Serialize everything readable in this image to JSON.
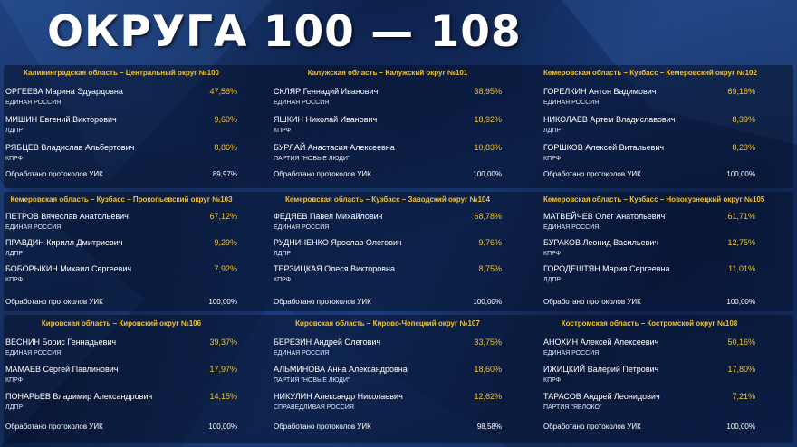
{
  "title": "ОКРУГА 100 — 108",
  "colors": {
    "accent": "#f2c230",
    "text": "#ffffff",
    "background": "#0b1b3c"
  },
  "districts": [
    {
      "header": "Калининградская область – Центральный округ №100",
      "candidates": [
        {
          "name": "ОРГЕЕВА Марина Эдуардовна",
          "pct": "47,58%",
          "party": "ЕДИНАЯ РОССИЯ"
        },
        {
          "name": "МИШИН Евгений Викторович",
          "pct": "9,60%",
          "party": "ЛДПР"
        },
        {
          "name": "РЯБЦЕВ Владислав Альбертович",
          "pct": "8,86%",
          "party": "КПРФ"
        }
      ],
      "footer_label": "Обработано протоколов УИК",
      "footer_pct": "89,97%"
    },
    {
      "header": "Калужская область – Калужский округ №101",
      "candidates": [
        {
          "name": "СКЛЯР Геннадий Иванович",
          "pct": "38,95%",
          "party": "ЕДИНАЯ РОССИЯ"
        },
        {
          "name": "ЯШКИН Николай Иванович",
          "pct": "18,92%",
          "party": "КПРФ"
        },
        {
          "name": "БУРЛАЙ Анастасия Алексеевна",
          "pct": "10,83%",
          "party": "ПАРТИЯ \"НОВЫЕ ЛЮДИ\""
        }
      ],
      "footer_label": "Обработано протоколов УИК",
      "footer_pct": "100,00%"
    },
    {
      "header": "Кемеровская область – Кузбасс – Кемеровский округ №102",
      "candidates": [
        {
          "name": "ГОРЕЛКИН Антон Вадимович",
          "pct": "69,16%",
          "party": "ЕДИНАЯ РОССИЯ"
        },
        {
          "name": "НИКОЛАЕВ Артем Владиславович",
          "pct": "8,39%",
          "party": "ЛДПР"
        },
        {
          "name": "ГОРШКОВ Алексей Витальевич",
          "pct": "8,23%",
          "party": "КПРФ"
        }
      ],
      "footer_label": "Обработано протоколов УИК",
      "footer_pct": "100,00%"
    },
    {
      "header": "Кемеровская область – Кузбасс – Прокопьевский округ №103",
      "candidates": [
        {
          "name": "ПЕТРОВ Вячеслав Анатольевич",
          "pct": "67,12%",
          "party": "ЕДИНАЯ РОССИЯ"
        },
        {
          "name": "ПРАВДИН Кирилл Дмитриевич",
          "pct": "9,29%",
          "party": "ЛДПР"
        },
        {
          "name": "БОБОРЫКИН Михаил Сергеевич",
          "pct": "7,92%",
          "party": "КПРФ"
        }
      ],
      "footer_label": "Обработано протоколов УИК",
      "footer_pct": "100,00%"
    },
    {
      "header": "Кемеровская область – Кузбасс – Заводский округ №104",
      "candidates": [
        {
          "name": "ФЕДЯЕВ Павел Михайлович",
          "pct": "68,78%",
          "party": "ЕДИНАЯ РОССИЯ"
        },
        {
          "name": "РУДНИЧЕНКО Ярослав Олегович",
          "pct": "9,76%",
          "party": "ЛДПР"
        },
        {
          "name": "ТЕРЗИЦКАЯ Олеся Викторовна",
          "pct": "8,75%",
          "party": "КПРФ"
        }
      ],
      "footer_label": "Обработано протоколов УИК",
      "footer_pct": "100,00%"
    },
    {
      "header": "Кемеровская область – Кузбасс – Новокузнецкий округ №105",
      "candidates": [
        {
          "name": "МАТВЕЙЧЕВ Олег Анатольевич",
          "pct": "61,71%",
          "party": "ЕДИНАЯ РОССИЯ"
        },
        {
          "name": "БУРАКОВ Леонид Васильевич",
          "pct": "12,75%",
          "party": "КПРФ"
        },
        {
          "name": "ГОРОДЕШТЯН Мария Сергеевна",
          "pct": "11,01%",
          "party": "ЛДПР"
        }
      ],
      "footer_label": "Обработано протоколов УИК",
      "footer_pct": "100,00%"
    },
    {
      "header": "Кировская область – Кировский округ №106",
      "candidates": [
        {
          "name": "ВЕСНИН Борис Геннадьевич",
          "pct": "39,37%",
          "party": "ЕДИНАЯ РОССИЯ"
        },
        {
          "name": "МАМАЕВ Сергей Павлинович",
          "pct": "17,97%",
          "party": "КПРФ"
        },
        {
          "name": "ПОНАРЬЕВ Владимир Александрович",
          "pct": "14,15%",
          "party": "ЛДПР"
        }
      ],
      "footer_label": "Обработано протоколов УИК",
      "footer_pct": "100,00%"
    },
    {
      "header": "Кировская область – Кирово-Чепецкий округ №107",
      "candidates": [
        {
          "name": "БЕРЕЗИН Андрей Олегович",
          "pct": "33,75%",
          "party": "ЕДИНАЯ РОССИЯ"
        },
        {
          "name": "АЛЬМИНОВА Анна Александровна",
          "pct": "18,60%",
          "party": "ПАРТИЯ \"НОВЫЕ ЛЮДИ\""
        },
        {
          "name": "НИКУЛИН Александр Николаевич",
          "pct": "12,62%",
          "party": "СПРАВЕДЛИВАЯ РОССИЯ"
        }
      ],
      "footer_label": "Обработано протоколов УИК",
      "footer_pct": "98,58%"
    },
    {
      "header": "Костромская область – Костромской округ №108",
      "candidates": [
        {
          "name": "АНОХИН Алексей Алексеевич",
          "pct": "50,16%",
          "party": "ЕДИНАЯ РОССИЯ"
        },
        {
          "name": "ИЖИЦКИЙ Валерий Петрович",
          "pct": "17,80%",
          "party": "КПРФ"
        },
        {
          "name": "ТАРАСОВ Андрей Леонидович",
          "pct": "7,21%",
          "party": "ПАРТИЯ \"ЯБЛОКО\""
        }
      ],
      "footer_label": "Обработано протоколов УИК",
      "footer_pct": "100,00%"
    }
  ]
}
